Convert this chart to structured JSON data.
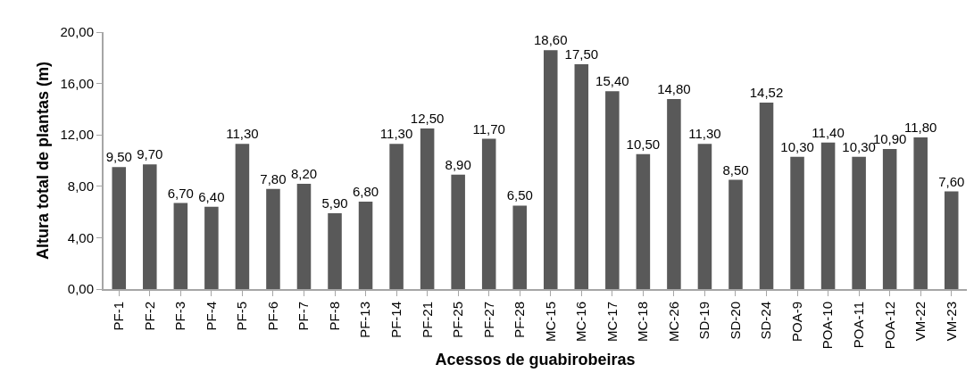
{
  "chart_data": {
    "type": "bar",
    "xlabel": "Acessos de guabirobeiras",
    "ylabel": "Altura total de plantas (m)",
    "categories": [
      "PF-1",
      "PF-2",
      "PF-3",
      "PF-4",
      "PF-5",
      "PF-6",
      "PF-7",
      "PF-8",
      "PF-13",
      "PF-14",
      "PF-21",
      "PF-25",
      "PF-27",
      "PF-28",
      "MC-15",
      "MC-16",
      "MC-17",
      "MC-18",
      "MC-26",
      "SD-19",
      "SD-20",
      "SD-24",
      "POA-9",
      "POA-10",
      "POA-11",
      "POA-12",
      "VM-22",
      "VM-23"
    ],
    "values": [
      9.5,
      9.7,
      6.7,
      6.4,
      11.3,
      7.8,
      8.2,
      5.9,
      6.8,
      11.3,
      12.5,
      8.9,
      11.7,
      6.5,
      18.6,
      17.5,
      15.4,
      10.5,
      14.8,
      11.3,
      8.5,
      14.52,
      10.3,
      11.4,
      10.3,
      10.9,
      11.8,
      7.6
    ],
    "value_labels": [
      "9,50",
      "9,70",
      "6,70",
      "6,40",
      "11,30",
      "7,80",
      "8,20",
      "5,90",
      "6,80",
      "11,30",
      "12,50",
      "8,90",
      "11,70",
      "6,50",
      "18,60",
      "17,50",
      "15,40",
      "10,50",
      "14,80",
      "11,30",
      "8,50",
      "14,52",
      "10,30",
      "11,40",
      "10,30",
      "10,90",
      "11,80",
      "7,60"
    ],
    "color": "#595959",
    "ylim": [
      0,
      20
    ],
    "yticks": [
      {
        "value": 0,
        "label": "0,00"
      },
      {
        "value": 4,
        "label": "4,00"
      },
      {
        "value": 8,
        "label": "8,00"
      },
      {
        "value": 12,
        "label": "12,00"
      },
      {
        "value": 16,
        "label": "16,00"
      },
      {
        "value": 20,
        "label": "20,00"
      }
    ]
  }
}
